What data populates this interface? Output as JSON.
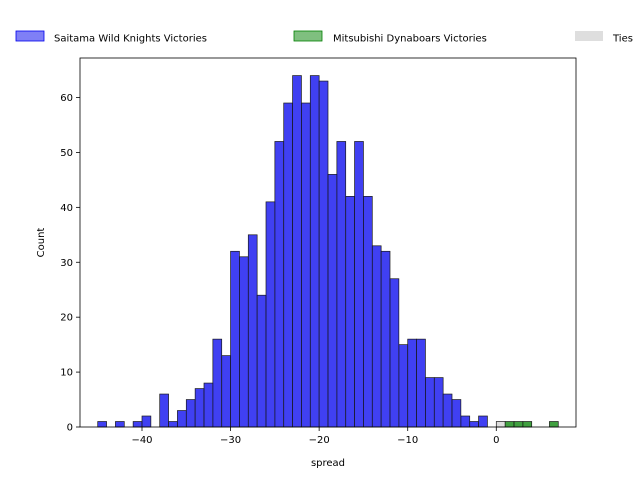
{
  "chart_data": {
    "type": "bar",
    "title": "",
    "xlabel": "spread",
    "ylabel": "Count",
    "xlim": [
      -47,
      9
    ],
    "ylim": [
      0,
      67.2
    ],
    "x_ticks": [
      -40,
      -30,
      -20,
      -10,
      0
    ],
    "y_ticks": [
      0,
      10,
      20,
      30,
      40,
      50,
      60
    ],
    "bin_width": 1,
    "grid": false,
    "legend_position": "top",
    "series": [
      {
        "name": "Saitama Wild Knights Victories",
        "color": "#0000ee",
        "bins": [
          {
            "x": -45,
            "count": 1
          },
          {
            "x": -43,
            "count": 1
          },
          {
            "x": -41,
            "count": 1
          },
          {
            "x": -40,
            "count": 2
          },
          {
            "x": -38,
            "count": 6
          },
          {
            "x": -37,
            "count": 1
          },
          {
            "x": -36,
            "count": 3
          },
          {
            "x": -35,
            "count": 5
          },
          {
            "x": -34,
            "count": 7
          },
          {
            "x": -33,
            "count": 8
          },
          {
            "x": -32,
            "count": 16
          },
          {
            "x": -31,
            "count": 13
          },
          {
            "x": -30,
            "count": 32
          },
          {
            "x": -29,
            "count": 31
          },
          {
            "x": -28,
            "count": 35
          },
          {
            "x": -27,
            "count": 24
          },
          {
            "x": -26,
            "count": 41
          },
          {
            "x": -25,
            "count": 52
          },
          {
            "x": -24,
            "count": 59
          },
          {
            "x": -23,
            "count": 64
          },
          {
            "x": -22,
            "count": 59
          },
          {
            "x": -21,
            "count": 64
          },
          {
            "x": -20,
            "count": 63
          },
          {
            "x": -19,
            "count": 46
          },
          {
            "x": -18,
            "count": 52
          },
          {
            "x": -17,
            "count": 42
          },
          {
            "x": -16,
            "count": 52
          },
          {
            "x": -15,
            "count": 42
          },
          {
            "x": -14,
            "count": 33
          },
          {
            "x": -13,
            "count": 32
          },
          {
            "x": -12,
            "count": 27
          },
          {
            "x": -11,
            "count": 15
          },
          {
            "x": -10,
            "count": 16
          },
          {
            "x": -9,
            "count": 16
          },
          {
            "x": -8,
            "count": 9
          },
          {
            "x": -7,
            "count": 9
          },
          {
            "x": -6,
            "count": 6
          },
          {
            "x": -5,
            "count": 5
          },
          {
            "x": -4,
            "count": 2
          },
          {
            "x": -3,
            "count": 1
          },
          {
            "x": -2,
            "count": 2
          }
        ]
      },
      {
        "name": "Mitsubishi Dynaboars Victories",
        "color": "#008000",
        "bins": [
          {
            "x": 1,
            "count": 1
          },
          {
            "x": 2,
            "count": 1
          },
          {
            "x": 3,
            "count": 1
          },
          {
            "x": 6,
            "count": 1
          }
        ]
      },
      {
        "name": "Ties",
        "color": "#c8c8c8",
        "bins": [
          {
            "x": 0,
            "count": 1
          }
        ]
      }
    ]
  }
}
